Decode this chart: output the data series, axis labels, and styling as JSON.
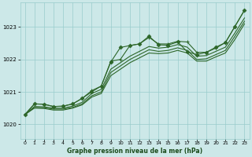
{
  "xlabel": "Graphe pression niveau de la mer (hPa)",
  "background_color": "#cce8e8",
  "grid_color": "#99cccc",
  "line_color": "#2d6629",
  "xlim": [
    -0.5,
    23.5
  ],
  "ylim": [
    1019.55,
    1023.75
  ],
  "yticks": [
    1020,
    1021,
    1022,
    1023
  ],
  "xticks": [
    0,
    1,
    2,
    3,
    4,
    5,
    6,
    7,
    8,
    9,
    10,
    11,
    12,
    13,
    14,
    15,
    16,
    17,
    18,
    19,
    20,
    21,
    22,
    23
  ],
  "line_zigzag": [
    1020.3,
    1020.63,
    1020.62,
    1020.55,
    1020.56,
    1020.63,
    1020.8,
    1021.0,
    1021.18,
    1021.92,
    1022.37,
    1022.43,
    1022.48,
    1022.72,
    1022.45,
    1022.44,
    1022.54,
    1022.24,
    1022.15,
    1022.22,
    1022.38,
    1022.52,
    1023.02,
    1023.52
  ],
  "line_upper": [
    1020.3,
    1020.63,
    1020.62,
    1020.55,
    1020.56,
    1020.63,
    1020.8,
    1021.04,
    1021.18,
    1021.95,
    1022.0,
    1022.43,
    1022.48,
    1022.68,
    1022.48,
    1022.48,
    1022.56,
    1022.54,
    1022.22,
    1022.22,
    1022.35,
    1022.52,
    1023.02,
    1023.52
  ],
  "line_mid1": [
    1020.3,
    1020.55,
    1020.54,
    1020.5,
    1020.5,
    1020.56,
    1020.68,
    1020.95,
    1021.08,
    1021.7,
    1021.9,
    1022.1,
    1022.25,
    1022.4,
    1022.35,
    1022.38,
    1022.46,
    1022.38,
    1022.1,
    1022.12,
    1022.25,
    1022.38,
    1022.82,
    1023.28
  ],
  "line_mid2": [
    1020.3,
    1020.52,
    1020.51,
    1020.47,
    1020.47,
    1020.52,
    1020.63,
    1020.88,
    1021.0,
    1021.6,
    1021.8,
    1022.0,
    1022.15,
    1022.3,
    1022.25,
    1022.28,
    1022.36,
    1022.28,
    1022.0,
    1022.02,
    1022.15,
    1022.28,
    1022.72,
    1023.18
  ],
  "line_bottom": [
    1020.3,
    1020.5,
    1020.49,
    1020.44,
    1020.44,
    1020.5,
    1020.6,
    1020.84,
    1020.95,
    1021.5,
    1021.7,
    1021.9,
    1022.05,
    1022.2,
    1022.18,
    1022.2,
    1022.28,
    1022.2,
    1021.95,
    1021.95,
    1022.08,
    1022.2,
    1022.62,
    1023.1
  ]
}
